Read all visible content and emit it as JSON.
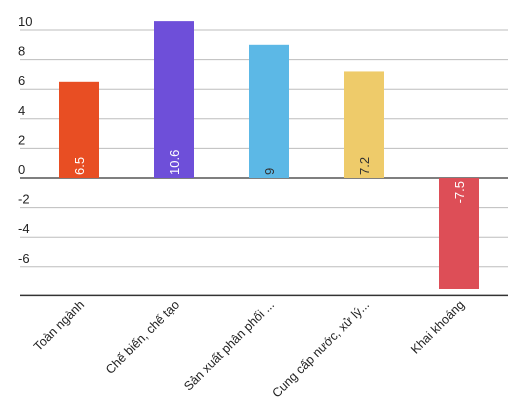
{
  "chart_data": {
    "type": "bar",
    "title": "",
    "xlabel": "",
    "ylabel": "",
    "categories": [
      "Toàn ngành",
      "Chế biến, chế tạo",
      "Sản xuất phân phối ...",
      "Cung cấp nước, xử lý...",
      "Khai khoáng"
    ],
    "values": [
      6.5,
      10.6,
      9,
      7.2,
      -7.5
    ],
    "value_labels": [
      "6.5",
      "10.6",
      "9",
      "7.2",
      "-7.5"
    ],
    "colors": [
      "#e84e23",
      "#6e4fd9",
      "#5cb8e6",
      "#eecb6a",
      "#dd4e57"
    ],
    "label_colors": [
      "#ffffff",
      "#ffffff",
      "#333333",
      "#333333",
      "#ffffff"
    ],
    "yticks": [
      10,
      8,
      6,
      4,
      2,
      0,
      -2,
      -4,
      -6
    ],
    "ytick_labels": [
      "10",
      "8",
      "6",
      "4",
      "2",
      "0",
      "-2",
      "-4",
      "-6"
    ],
    "ylim": [
      -8,
      10.6
    ],
    "grid": true,
    "legend": "none"
  }
}
